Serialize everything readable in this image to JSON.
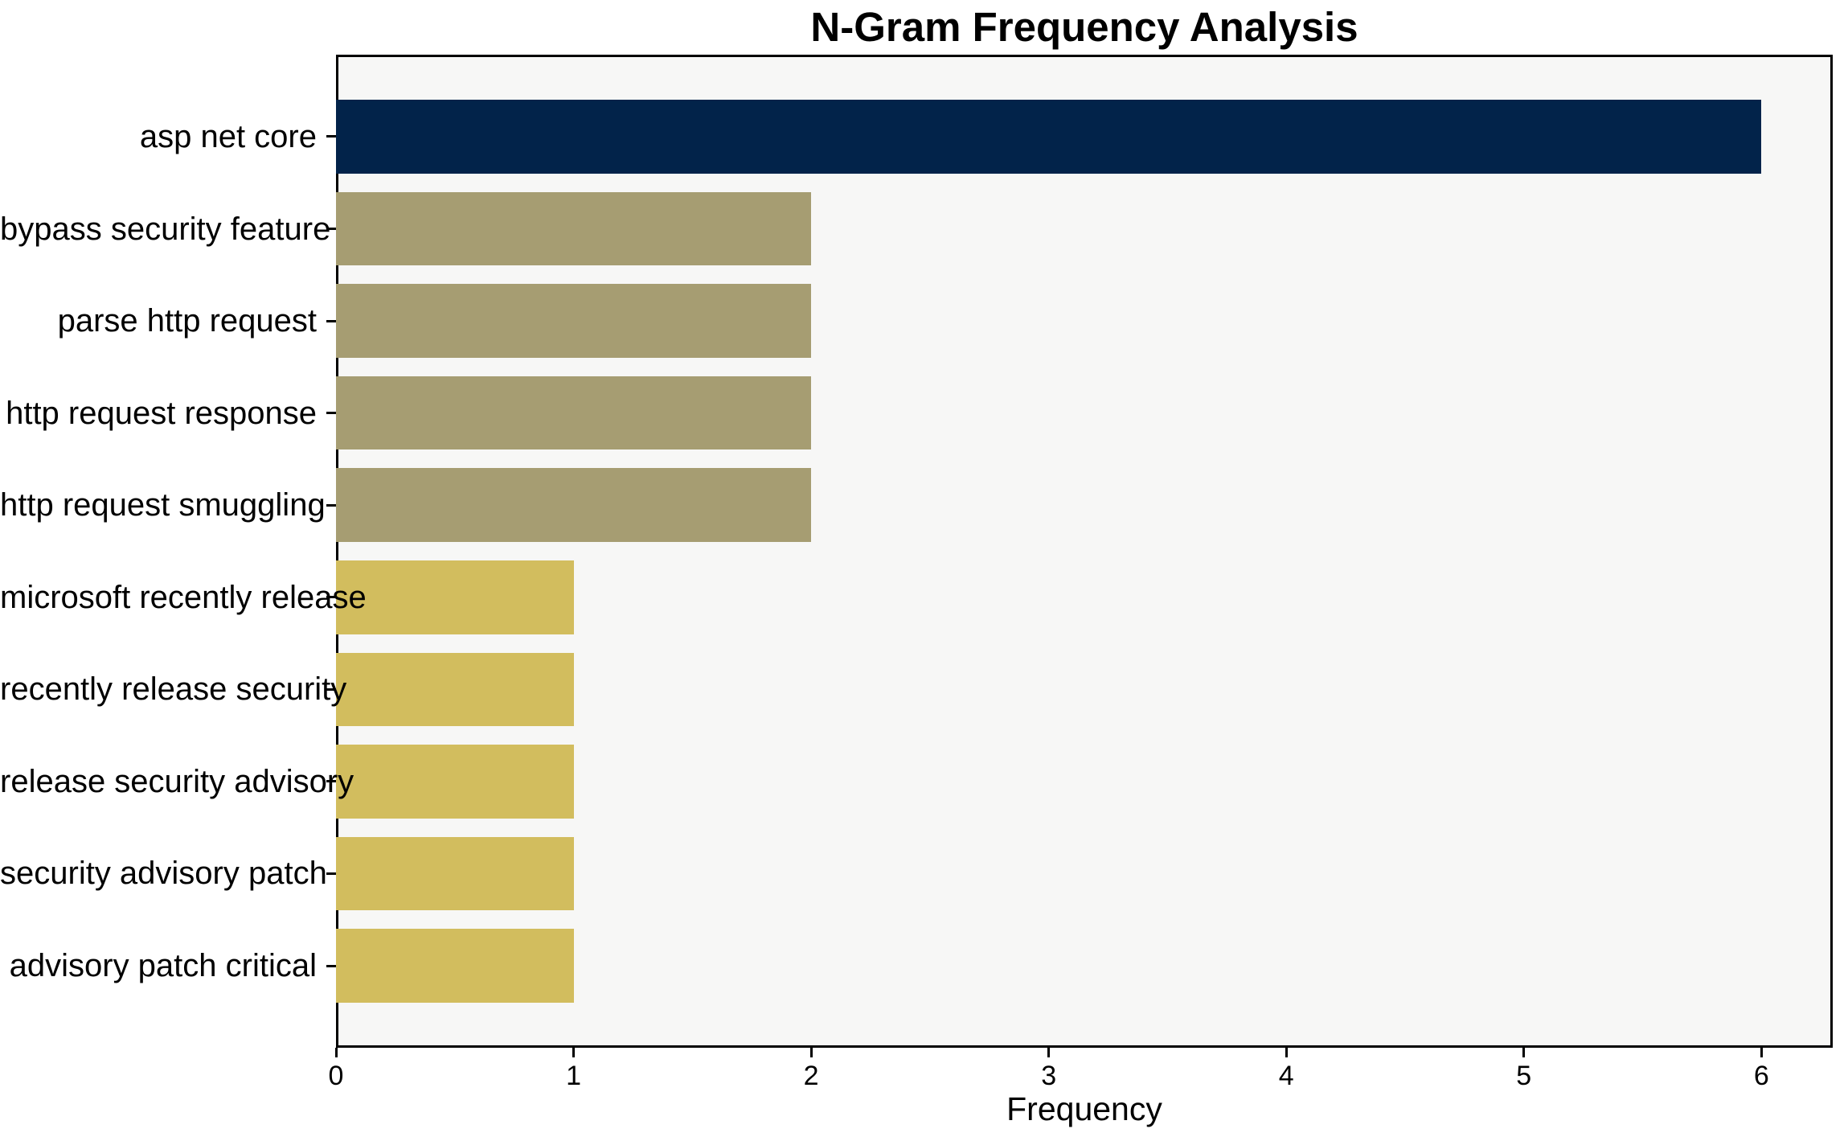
{
  "chart_data": {
    "type": "bar",
    "orientation": "horizontal",
    "title": "N-Gram Frequency Analysis",
    "xlabel": "Frequency",
    "ylabel": "",
    "categories": [
      "asp net core",
      "bypass security feature",
      "parse http request",
      "http request response",
      "http request smuggling",
      "microsoft recently release",
      "recently release security",
      "release security advisory",
      "security advisory patch",
      "advisory patch critical"
    ],
    "values": [
      6,
      2,
      2,
      2,
      2,
      1,
      1,
      1,
      1,
      1
    ],
    "bar_colors": [
      "#02234a",
      "#a69d72",
      "#a69d72",
      "#a69d72",
      "#a69d72",
      "#d2bd5e",
      "#d2bd5e",
      "#d2bd5e",
      "#d2bd5e",
      "#d2bd5e"
    ],
    "x_ticks": [
      "0",
      "1",
      "2",
      "3",
      "4",
      "5",
      "6"
    ],
    "x_tick_values": [
      0,
      1,
      2,
      3,
      4,
      5,
      6
    ],
    "xlim": [
      0,
      6.3
    ],
    "grid": false,
    "legend": null,
    "colors": {
      "plot_background": "#f7f7f6",
      "figure_background": "#ffffff",
      "spine": "#000000",
      "text": "#000000"
    }
  }
}
